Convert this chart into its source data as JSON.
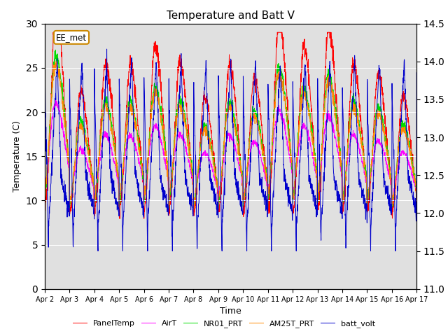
{
  "title": "Temperature and Batt V",
  "xlabel": "Time",
  "ylabel_left": "Temperature (C)",
  "ylabel_right": "Batt V",
  "annotation": "EE_met",
  "x_tick_labels": [
    "Apr 2",
    "Apr 3",
    "Apr 4",
    "Apr 5",
    "Apr 6",
    "Apr 7",
    "Apr 8",
    "Apr 9",
    "Apr 10",
    "Apr 11",
    "Apr 12",
    "Apr 13",
    "Apr 14",
    "Apr 15",
    "Apr 16",
    "Apr 17"
  ],
  "ylim_left": [
    0,
    30
  ],
  "ylim_right": [
    11.0,
    14.5
  ],
  "yticks_left": [
    0,
    5,
    10,
    15,
    20,
    25,
    30
  ],
  "yticks_right": [
    11.0,
    11.5,
    12.0,
    12.5,
    13.0,
    13.5,
    14.0,
    14.5
  ],
  "background_color": "#e0e0e0",
  "figure_color": "#ffffff",
  "series_colors": {
    "PanelTemp": "#ff0000",
    "AirT": "#ff00ff",
    "NR01_PRT": "#00dd00",
    "AM25T_PRT": "#ff8800",
    "batt_volt": "#0000cc"
  },
  "legend_entries": [
    "PanelTemp",
    "AirT",
    "NR01_PRT",
    "AM25T_PRT",
    "batt_volt"
  ],
  "n_days": 15,
  "pts_per_day": 144
}
